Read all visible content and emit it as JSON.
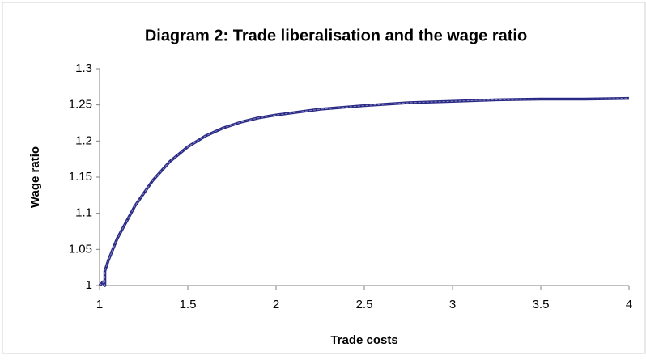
{
  "chart_data": {
    "type": "line",
    "title": "Diagram 2: Trade liberalisation and the wage ratio",
    "xlabel": "Trade costs",
    "ylabel": "Wage ratio",
    "x": [
      1.0,
      1.02,
      1.03,
      1.03,
      1.05,
      1.1,
      1.2,
      1.3,
      1.4,
      1.5,
      1.6,
      1.7,
      1.8,
      1.9,
      2.0,
      2.25,
      2.5,
      2.75,
      3.0,
      3.25,
      3.5,
      3.75,
      4.0
    ],
    "series": [
      {
        "name": "Wage ratio",
        "color": "#2a2a86",
        "values": [
          1.0,
          1.005,
          1.0,
          1.02,
          1.035,
          1.065,
          1.11,
          1.145,
          1.172,
          1.192,
          1.207,
          1.218,
          1.226,
          1.232,
          1.236,
          1.244,
          1.249,
          1.253,
          1.255,
          1.257,
          1.258,
          1.258,
          1.259
        ]
      }
    ],
    "xlim": [
      1,
      4
    ],
    "xticks": [
      1,
      1.5,
      2,
      2.5,
      3,
      3.5,
      4
    ],
    "ylim": [
      1,
      1.3
    ],
    "yticks": [
      1,
      1.05,
      1.1,
      1.15,
      1.2,
      1.25,
      1.3
    ],
    "grid": false
  }
}
